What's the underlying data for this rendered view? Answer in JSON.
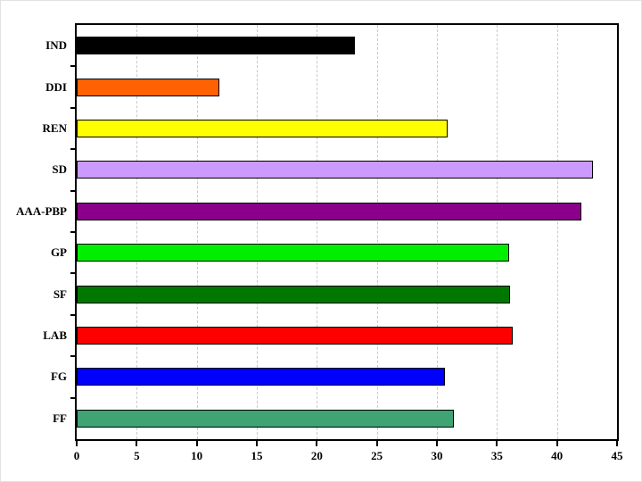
{
  "figure": {
    "background": "#FFFFFF",
    "frame_border_color": "#E2E2E2",
    "plot_border_color": "#000000"
  },
  "chart_data": {
    "type": "bar",
    "orientation": "horizontal",
    "title": "",
    "xlabel": "",
    "ylabel": "",
    "categories": [
      "IND",
      "DDI",
      "REN",
      "SD",
      "AAA-PBP",
      "GP",
      "SF",
      "LAB",
      "FG",
      "FF"
    ],
    "values": [
      23.2,
      11.9,
      30.9,
      43.0,
      42.0,
      36.0,
      36.1,
      36.3,
      30.7,
      31.4
    ],
    "bar_colors": [
      "#000000",
      "#FF6103",
      "#FFFF00",
      "#CC99FF",
      "#8B008B",
      "#00EE00",
      "#007800",
      "#FF0000",
      "#0000FF",
      "#3FA373"
    ],
    "bar_outline_color": "#000000",
    "xlim": [
      0,
      45
    ],
    "xticks": [
      0,
      5,
      10,
      15,
      20,
      25,
      30,
      35,
      40,
      45
    ],
    "xtick_labels": [
      "0",
      "5",
      "10",
      "15",
      "20",
      "25",
      "30",
      "35",
      "40",
      "45"
    ],
    "grid": {
      "vertical": true,
      "style": "dashed",
      "color": "#C9C9C9",
      "interval": 5
    },
    "legend": null
  }
}
